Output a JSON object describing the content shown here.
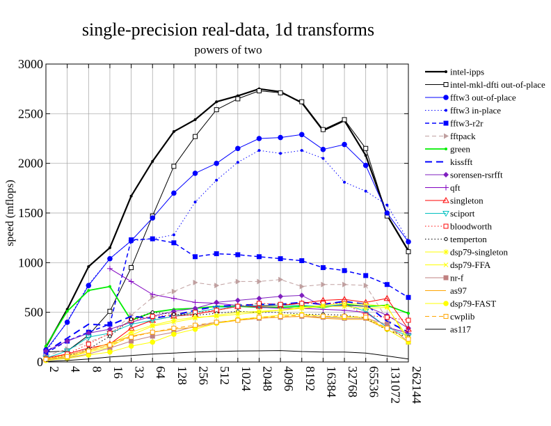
{
  "chart_data": {
    "type": "line",
    "title": "single-precision real-data, 1d transforms",
    "subtitle": "powers of two",
    "xlabel": "",
    "ylabel": "speed (mflops)",
    "ylim": [
      0,
      3000
    ],
    "yticks": [
      0,
      500,
      1000,
      1500,
      2000,
      2500,
      3000
    ],
    "grid": true,
    "legend_position": "right",
    "x_scale": "log2",
    "x": [
      "2",
      "4",
      "8",
      "16",
      "32",
      "64",
      "128",
      "256",
      "512",
      "1024",
      "2048",
      "4096",
      "8192",
      "16384",
      "32768",
      "65536",
      "131072",
      "262144"
    ],
    "series": [
      {
        "name": "intel-ipps",
        "color": "#000000",
        "dash": "solid",
        "marker": "dot",
        "width": 2.2,
        "values": [
          150,
          530,
          960,
          1150,
          1670,
          2020,
          2320,
          2440,
          2620,
          2680,
          2750,
          2720,
          2610,
          2330,
          2430,
          2080,
          1480,
          1120
        ]
      },
      {
        "name": "intel-mkl-dfti out-of-place",
        "color": "#000000",
        "dash": "solid",
        "marker": "square-open",
        "width": 1,
        "values": [
          100,
          110,
          270,
          510,
          950,
          1470,
          1970,
          2270,
          2540,
          2650,
          2730,
          2710,
          2620,
          2340,
          2440,
          2150,
          1470,
          1110
        ]
      },
      {
        "name": "fftw3 out-of-place",
        "color": "#0000ff",
        "dash": "solid",
        "marker": "circle-filled",
        "width": 1,
        "values": [
          120,
          400,
          770,
          1040,
          1220,
          1450,
          1700,
          1900,
          2000,
          2150,
          2250,
          2260,
          2290,
          2140,
          2190,
          1980,
          1500,
          1210
        ]
      },
      {
        "name": "fftw3 in-place",
        "color": "#0000ff",
        "dash": "dot",
        "marker": "dot",
        "width": 1,
        "values": [
          100,
          410,
          780,
          1040,
          1220,
          1240,
          1280,
          1610,
          1830,
          2010,
          2130,
          2100,
          2130,
          2050,
          1810,
          1720,
          1580,
          1220
        ]
      },
      {
        "name": "fftw3-r2r",
        "color": "#0000ff",
        "dash": "dash",
        "marker": "square-filled",
        "width": 1.5,
        "values": [
          90,
          210,
          300,
          380,
          1230,
          1240,
          1200,
          1060,
          1090,
          1080,
          1060,
          1040,
          1020,
          950,
          920,
          870,
          780,
          650
        ]
      },
      {
        "name": "fftpack",
        "color": "#c0a0a0",
        "dash": "dash",
        "marker": "triangle-right",
        "width": 1,
        "values": [
          60,
          130,
          200,
          280,
          470,
          650,
          710,
          800,
          770,
          810,
          810,
          830,
          760,
          780,
          780,
          770,
          430,
          270
        ]
      },
      {
        "name": "green",
        "color": "#00ee00",
        "dash": "solid",
        "marker": "dot",
        "width": 1.8,
        "values": [
          160,
          510,
          720,
          760,
          420,
          500,
          530,
          540,
          560,
          560,
          550,
          550,
          560,
          550,
          580,
          560,
          570,
          490
        ]
      },
      {
        "name": "kissfft",
        "color": "#0000ff",
        "dash": "longdash",
        "marker": "none",
        "width": 2,
        "values": [
          100,
          240,
          380,
          370,
          460,
          440,
          470,
          520,
          560,
          570,
          580,
          580,
          600,
          580,
          610,
          580,
          410,
          300
        ]
      },
      {
        "name": "sorensen-rsrfft",
        "color": "#7f1fbf",
        "dash": "solid",
        "marker": "diamond",
        "width": 1,
        "values": [
          110,
          210,
          290,
          330,
          400,
          460,
          510,
          540,
          600,
          620,
          640,
          660,
          670,
          560,
          570,
          560,
          470,
          340
        ]
      },
      {
        "name": "qft",
        "color": "#8000c0",
        "dash": "solid",
        "marker": "plus",
        "width": 1,
        "values": [
          0,
          0,
          0,
          940,
          810,
          680,
          640,
          600,
          590,
          570,
          550,
          540,
          540,
          530,
          520,
          500,
          350,
          290
        ]
      },
      {
        "name": "singleton",
        "color": "#ff0000",
        "dash": "solid",
        "marker": "triangle-up",
        "width": 1,
        "values": [
          40,
          80,
          140,
          180,
          340,
          420,
          460,
          480,
          520,
          560,
          560,
          570,
          590,
          620,
          630,
          600,
          640,
          330
        ]
      },
      {
        "name": "sciport",
        "color": "#00c0c0",
        "dash": "solid",
        "marker": "triangle-down",
        "width": 1,
        "values": [
          40,
          110,
          250,
          290,
          380,
          420,
          460,
          500,
          540,
          560,
          570,
          570,
          570,
          560,
          580,
          510,
          350,
          260
        ]
      },
      {
        "name": "bloodworth",
        "color": "#ff0000",
        "dash": "dot",
        "marker": "square-open",
        "width": 1,
        "values": [
          30,
          80,
          180,
          290,
          420,
          460,
          470,
          500,
          520,
          560,
          590,
          580,
          590,
          590,
          590,
          470,
          450,
          420
        ]
      },
      {
        "name": "temperton",
        "color": "#000000",
        "dash": "dot",
        "marker": "circle-open",
        "width": 1,
        "values": [
          20,
          60,
          130,
          260,
          430,
          500,
          480,
          470,
          490,
          510,
          500,
          500,
          480,
          480,
          470,
          440,
          320,
          250
        ]
      },
      {
        "name": "dsp79-singleton",
        "color": "#ffff00",
        "dash": "solid",
        "marker": "asterisk",
        "width": 1,
        "values": [
          25,
          55,
          110,
          170,
          300,
          370,
          420,
          450,
          460,
          480,
          500,
          520,
          540,
          560,
          560,
          540,
          550,
          240
        ]
      },
      {
        "name": "dsp79-FFA",
        "color": "#ffff00",
        "dash": "solid",
        "marker": "cross",
        "width": 1,
        "values": [
          20,
          45,
          100,
          150,
          270,
          360,
          400,
          440,
          470,
          500,
          510,
          520,
          550,
          570,
          590,
          580,
          560,
          210
        ]
      },
      {
        "name": "nr-f",
        "color": "#c08080",
        "dash": "solid",
        "marker": "square-filled",
        "width": 1,
        "values": [
          20,
          40,
          80,
          140,
          210,
          260,
          300,
          360,
          400,
          420,
          440,
          450,
          460,
          450,
          440,
          440,
          380,
          200
        ]
      },
      {
        "name": "as97",
        "color": "#ffa500",
        "dash": "solid",
        "marker": "none",
        "width": 1,
        "values": [
          30,
          70,
          120,
          190,
          260,
          300,
          330,
          350,
          390,
          420,
          440,
          450,
          460,
          440,
          430,
          430,
          330,
          200
        ]
      },
      {
        "name": "dsp79-FAST",
        "color": "#ffff00",
        "dash": "solid",
        "marker": "circle-filled",
        "width": 1,
        "values": [
          15,
          35,
          70,
          100,
          160,
          200,
          280,
          330,
          390,
          430,
          450,
          470,
          480,
          460,
          450,
          450,
          330,
          200
        ]
      },
      {
        "name": "cwplib",
        "color": "#ffa500",
        "dash": "dash",
        "marker": "square-open",
        "width": 1,
        "values": [
          25,
          55,
          110,
          170,
          250,
          300,
          340,
          370,
          400,
          420,
          450,
          460,
          470,
          460,
          460,
          450,
          340,
          230
        ]
      },
      {
        "name": "as117",
        "color": "#000000",
        "dash": "solid",
        "marker": "none",
        "width": 1,
        "values": [
          5,
          15,
          30,
          50,
          65,
          80,
          90,
          100,
          105,
          110,
          112,
          115,
          105,
          100,
          100,
          90,
          60,
          30
        ]
      }
    ]
  }
}
